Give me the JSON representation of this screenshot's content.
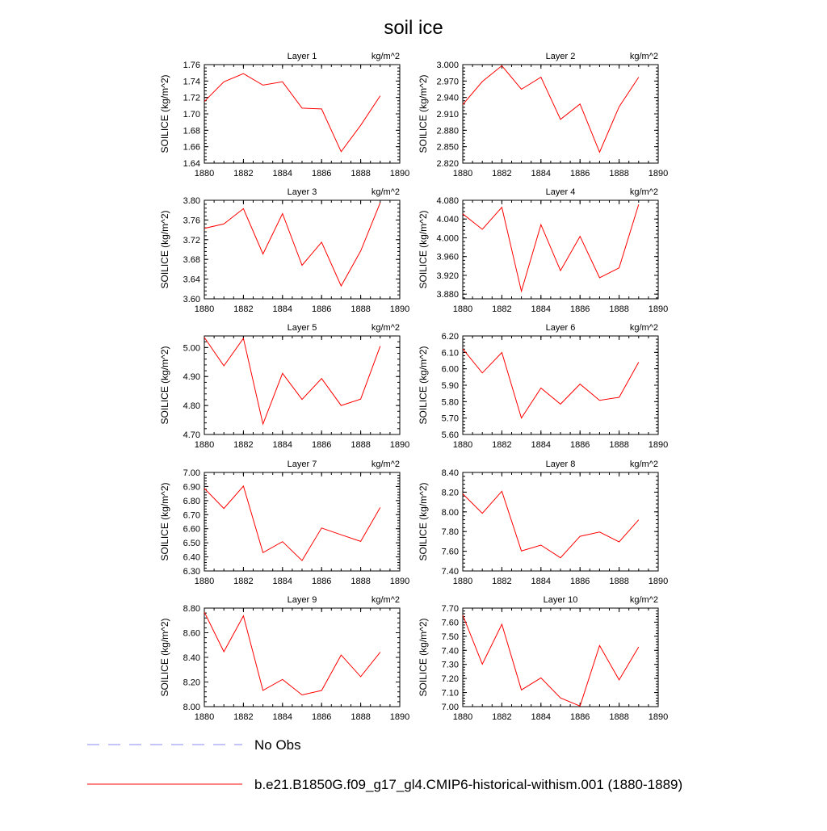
{
  "figure": {
    "title": "soil ice",
    "legend": [
      {
        "label": "No Obs",
        "color": "#8a8af0",
        "dash": true
      },
      {
        "label": "b.e21.B1850G.f09_g17_gl4.CMIP6-historical-withism.001 (1880-1889)",
        "color": "#ff0000",
        "dash": false
      }
    ]
  },
  "chart_data": [
    {
      "type": "line",
      "title": "Layer 1",
      "units": "kg/m^2",
      "ylabel": "SOILICE  (kg/m^2)",
      "x": [
        1880,
        1881,
        1882,
        1883,
        1884,
        1885,
        1886,
        1887,
        1888,
        1889
      ],
      "xlim": [
        1880,
        1890
      ],
      "xticks": [
        "1880",
        "1882",
        "1884",
        "1886",
        "1888",
        "1890"
      ],
      "ylim": [
        1.64,
        1.76
      ],
      "yticks": [
        "1.64",
        "1.66",
        "1.68",
        "1.70",
        "1.72",
        "1.74",
        "1.76"
      ],
      "series": [
        {
          "values": [
            1.715,
            1.739,
            1.749,
            1.735,
            1.739,
            1.707,
            1.706,
            1.654,
            1.686,
            1.722
          ],
          "color": "#ff0000"
        }
      ]
    },
    {
      "type": "line",
      "title": "Layer 2",
      "units": "kg/m^2",
      "ylabel": "SOILICE  (kg/m^2)",
      "x": [
        1880,
        1881,
        1882,
        1883,
        1884,
        1885,
        1886,
        1887,
        1888,
        1889
      ],
      "xlim": [
        1880,
        1890
      ],
      "xticks": [
        "1880",
        "1882",
        "1884",
        "1886",
        "1888",
        "1890"
      ],
      "ylim": [
        2.82,
        3.0
      ],
      "yticks": [
        "2.820",
        "2.850",
        "2.880",
        "2.910",
        "2.940",
        "2.970",
        "3.000"
      ],
      "series": [
        {
          "values": [
            2.927,
            2.969,
            2.998,
            2.955,
            2.977,
            2.9,
            2.928,
            2.84,
            2.923,
            2.977
          ],
          "color": "#ff0000"
        }
      ]
    },
    {
      "type": "line",
      "title": "Layer 3",
      "units": "kg/m^2",
      "ylabel": "SOILICE  (kg/m^2)",
      "x": [
        1880,
        1881,
        1882,
        1883,
        1884,
        1885,
        1886,
        1887,
        1888,
        1889
      ],
      "xlim": [
        1880,
        1890
      ],
      "xticks": [
        "1880",
        "1882",
        "1884",
        "1886",
        "1888",
        "1890"
      ],
      "ylim": [
        3.6,
        3.8
      ],
      "yticks": [
        "3.60",
        "3.64",
        "3.68",
        "3.72",
        "3.76",
        "3.80"
      ],
      "series": [
        {
          "values": [
            3.743,
            3.752,
            3.783,
            3.691,
            3.773,
            3.668,
            3.715,
            3.626,
            3.697,
            3.795
          ],
          "color": "#ff0000"
        }
      ]
    },
    {
      "type": "line",
      "title": "Layer 4",
      "units": "kg/m^2",
      "ylabel": "SOILICE  (kg/m^2)",
      "x": [
        1880,
        1881,
        1882,
        1883,
        1884,
        1885,
        1886,
        1887,
        1888,
        1889
      ],
      "xlim": [
        1880,
        1890
      ],
      "xticks": [
        "1880",
        "1882",
        "1884",
        "1886",
        "1888",
        "1890"
      ],
      "ylim": [
        3.87,
        4.08
      ],
      "yticks": [
        "3.880",
        "3.920",
        "3.960",
        "4.000",
        "4.040",
        "4.080"
      ],
      "series": [
        {
          "values": [
            4.051,
            4.018,
            4.065,
            3.886,
            4.028,
            3.93,
            4.003,
            3.915,
            3.936,
            4.071
          ],
          "color": "#ff0000"
        }
      ]
    },
    {
      "type": "line",
      "title": "Layer 5",
      "units": "kg/m^2",
      "ylabel": "SOILICE  (kg/m^2)",
      "x": [
        1880,
        1881,
        1882,
        1883,
        1884,
        1885,
        1886,
        1887,
        1888,
        1889
      ],
      "xlim": [
        1880,
        1890
      ],
      "xticks": [
        "1880",
        "1882",
        "1884",
        "1886",
        "1888",
        "1890"
      ],
      "ylim": [
        4.7,
        5.04
      ],
      "yticks": [
        "4.70",
        "4.80",
        "4.90",
        "5.00"
      ],
      "series": [
        {
          "values": [
            5.035,
            4.937,
            5.032,
            4.736,
            4.911,
            4.821,
            4.893,
            4.8,
            4.822,
            5.005
          ],
          "color": "#ff0000"
        }
      ]
    },
    {
      "type": "line",
      "title": "Layer 6",
      "units": "kg/m^2",
      "ylabel": "SOILICE  (kg/m^2)",
      "x": [
        1880,
        1881,
        1882,
        1883,
        1884,
        1885,
        1886,
        1887,
        1888,
        1889
      ],
      "xlim": [
        1880,
        1890
      ],
      "xticks": [
        "1880",
        "1882",
        "1884",
        "1886",
        "1888",
        "1890"
      ],
      "ylim": [
        5.6,
        6.2
      ],
      "yticks": [
        "5.60",
        "5.70",
        "5.80",
        "5.90",
        "6.00",
        "6.10",
        "6.20"
      ],
      "series": [
        {
          "values": [
            6.122,
            5.975,
            6.099,
            5.7,
            5.883,
            5.785,
            5.907,
            5.808,
            5.826,
            6.04
          ],
          "color": "#ff0000"
        }
      ]
    },
    {
      "type": "line",
      "title": "Layer 7",
      "units": "kg/m^2",
      "ylabel": "SOILICE  (kg/m^2)",
      "x": [
        1880,
        1881,
        1882,
        1883,
        1884,
        1885,
        1886,
        1887,
        1888,
        1889
      ],
      "xlim": [
        1880,
        1890
      ],
      "xticks": [
        "1880",
        "1882",
        "1884",
        "1886",
        "1888",
        "1890"
      ],
      "ylim": [
        6.3,
        7.0
      ],
      "yticks": [
        "6.30",
        "6.40",
        "6.50",
        "6.60",
        "6.70",
        "6.80",
        "6.90",
        "7.00"
      ],
      "series": [
        {
          "values": [
            6.887,
            6.744,
            6.903,
            6.43,
            6.508,
            6.374,
            6.605,
            6.557,
            6.51,
            6.751
          ],
          "color": "#ff0000"
        }
      ]
    },
    {
      "type": "line",
      "title": "Layer 8",
      "units": "kg/m^2",
      "ylabel": "SOILICE  (kg/m^2)",
      "x": [
        1880,
        1881,
        1882,
        1883,
        1884,
        1885,
        1886,
        1887,
        1888,
        1889
      ],
      "xlim": [
        1880,
        1890
      ],
      "xticks": [
        "1880",
        "1882",
        "1884",
        "1886",
        "1888",
        "1890"
      ],
      "ylim": [
        7.4,
        8.4
      ],
      "yticks": [
        "7.40",
        "7.60",
        "7.80",
        "8.00",
        "8.20",
        "8.40"
      ],
      "series": [
        {
          "values": [
            8.183,
            7.985,
            8.209,
            7.603,
            7.662,
            7.534,
            7.752,
            7.795,
            7.695,
            7.919
          ],
          "color": "#ff0000"
        }
      ]
    },
    {
      "type": "line",
      "title": "Layer 9",
      "units": "kg/m^2",
      "ylabel": "SOILICE  (kg/m^2)",
      "x": [
        1880,
        1881,
        1882,
        1883,
        1884,
        1885,
        1886,
        1887,
        1888,
        1889
      ],
      "xlim": [
        1880,
        1890
      ],
      "xticks": [
        "1880",
        "1882",
        "1884",
        "1886",
        "1888",
        "1890"
      ],
      "ylim": [
        8.0,
        8.8
      ],
      "yticks": [
        "8.00",
        "8.20",
        "8.40",
        "8.60",
        "8.80"
      ],
      "series": [
        {
          "values": [
            8.768,
            8.446,
            8.737,
            8.132,
            8.221,
            8.095,
            8.131,
            8.419,
            8.243,
            8.442
          ],
          "color": "#ff0000"
        }
      ]
    },
    {
      "type": "line",
      "title": "Layer 10",
      "units": "kg/m^2",
      "ylabel": "SOILICE  (kg/m^2)",
      "x": [
        1880,
        1881,
        1882,
        1883,
        1884,
        1885,
        1886,
        1887,
        1888,
        1889
      ],
      "xlim": [
        1880,
        1890
      ],
      "xticks": [
        "1880",
        "1882",
        "1884",
        "1886",
        "1888",
        "1890"
      ],
      "ylim": [
        7.0,
        7.7
      ],
      "yticks": [
        "7.00",
        "7.10",
        "7.20",
        "7.30",
        "7.40",
        "7.50",
        "7.60",
        "7.70"
      ],
      "series": [
        {
          "values": [
            7.65,
            7.302,
            7.585,
            7.119,
            7.204,
            7.062,
            7.004,
            7.434,
            7.19,
            7.424
          ],
          "color": "#ff0000"
        }
      ]
    }
  ]
}
